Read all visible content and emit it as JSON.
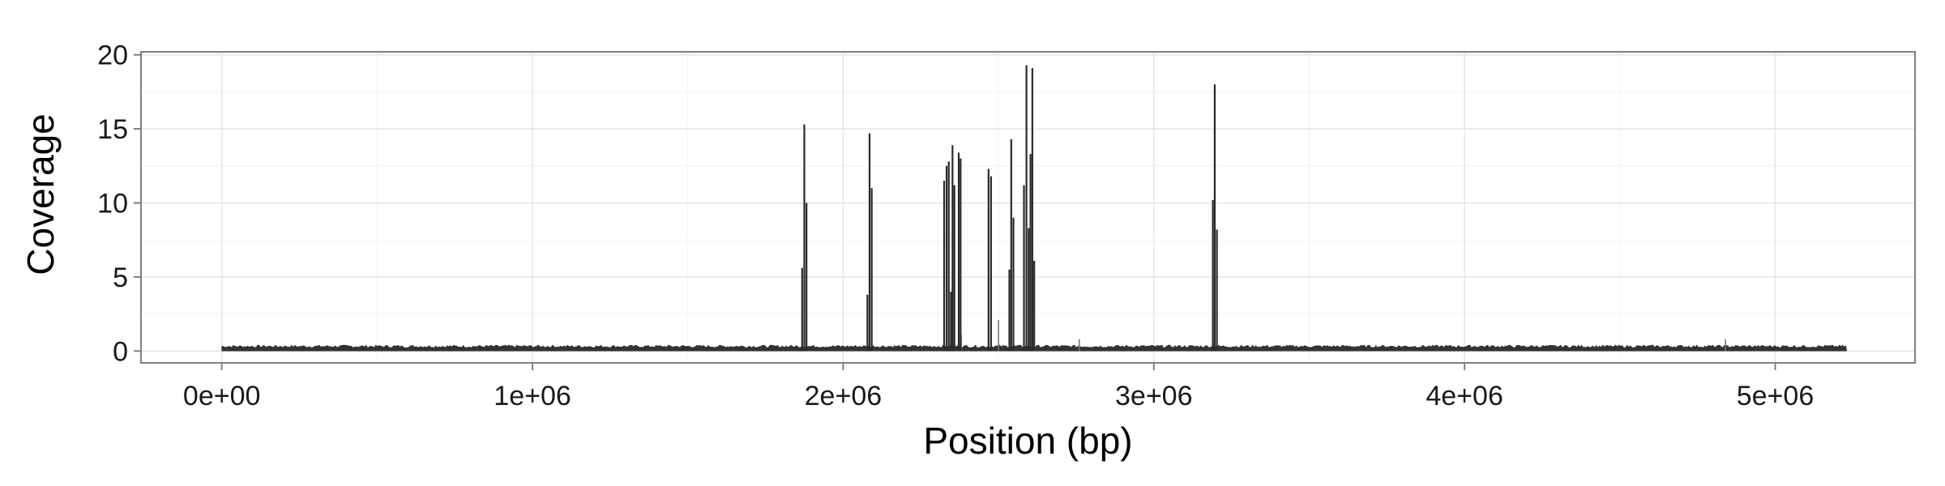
{
  "chart_data": {
    "type": "area",
    "xlabel": "Position (bp)",
    "ylabel": "Coverage",
    "xlim": [
      -260000,
      5450000
    ],
    "ylim": [
      -0.8,
      20.2
    ],
    "x_ticks": [
      0,
      1000000,
      2000000,
      3000000,
      4000000,
      5000000
    ],
    "x_tick_labels": [
      "0e+00",
      "1e+06",
      "2e+06",
      "3e+06",
      "4e+06",
      "5e+06"
    ],
    "y_ticks": [
      0,
      5,
      10,
      15,
      20
    ],
    "y_tick_labels": [
      "0",
      "5",
      "10",
      "15",
      "20"
    ],
    "grid": true,
    "legend": "none",
    "baseline": {
      "x_start": 0,
      "x_end": 5230000,
      "mean_coverage": 0.3,
      "bumps": [
        {
          "x": 2500000,
          "y": 2.1
        },
        {
          "x": 2380000,
          "y": 1.1
        },
        {
          "x": 2760000,
          "y": 0.8
        },
        {
          "x": 4840000,
          "y": 0.8
        }
      ]
    },
    "series": [
      {
        "values": [
          {
            "x": 1868000,
            "y": 5.6
          },
          {
            "x": 1875000,
            "y": 15.3
          },
          {
            "x": 1882000,
            "y": 10.0
          },
          {
            "x": 2078000,
            "y": 3.8
          },
          {
            "x": 2085000,
            "y": 14.7
          },
          {
            "x": 2092000,
            "y": 11.0
          },
          {
            "x": 2325000,
            "y": 11.5
          },
          {
            "x": 2333000,
            "y": 12.5
          },
          {
            "x": 2340000,
            "y": 12.8
          },
          {
            "x": 2347000,
            "y": 4.0
          },
          {
            "x": 2352000,
            "y": 13.9
          },
          {
            "x": 2358000,
            "y": 11.2
          },
          {
            "x": 2372000,
            "y": 13.4
          },
          {
            "x": 2378000,
            "y": 13.0
          },
          {
            "x": 2468000,
            "y": 12.3
          },
          {
            "x": 2476000,
            "y": 11.8
          },
          {
            "x": 2535000,
            "y": 5.5
          },
          {
            "x": 2541000,
            "y": 14.3
          },
          {
            "x": 2548000,
            "y": 9.0
          },
          {
            "x": 2582000,
            "y": 11.2
          },
          {
            "x": 2590000,
            "y": 19.3
          },
          {
            "x": 2597000,
            "y": 8.3
          },
          {
            "x": 2603000,
            "y": 13.3
          },
          {
            "x": 2609000,
            "y": 19.1
          },
          {
            "x": 2615000,
            "y": 6.1
          },
          {
            "x": 3190000,
            "y": 10.2
          },
          {
            "x": 3196000,
            "y": 18.0
          },
          {
            "x": 3203000,
            "y": 8.2
          }
        ]
      }
    ]
  },
  "colors": {
    "bar": "#2a2a2a",
    "baseline": "#333333",
    "grid_major": "#e4e4e4",
    "grid_minor": "#f2f2f2",
    "panel_border": "#7f7f7f",
    "tick": "#7f7f7f"
  }
}
